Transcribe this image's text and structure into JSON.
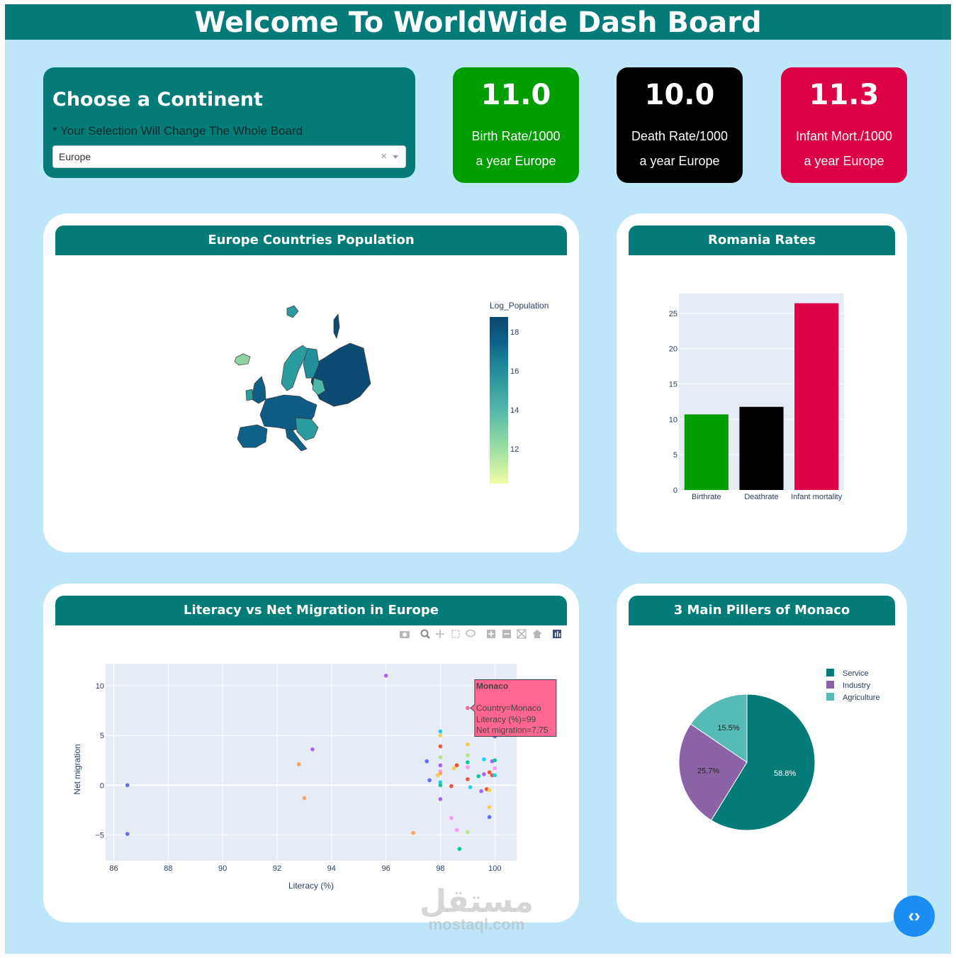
{
  "header": {
    "title": "Welcome To WorldWide Dash Board"
  },
  "selector": {
    "title": "Choose a Continent",
    "note": "* Your Selection Will Change The Whole Board",
    "selected": "Europe",
    "clear_glyph": "×"
  },
  "stats": {
    "birth": {
      "value": "11.0",
      "line1": "Birth Rate/1000",
      "line2": "a year Europe",
      "color": "#009e00"
    },
    "death": {
      "value": "10.0",
      "line1": "Death Rate/1000",
      "line2": "a year Europe",
      "color": "#000000"
    },
    "infant": {
      "value": "11.3",
      "line1": "Infant Mort./1000",
      "line2": "a year Europe",
      "color": "#dc0045"
    }
  },
  "map_card": {
    "title": "Europe Countries Population",
    "colorbar_title": "Log_Population",
    "colorbar_ticks": [
      "18",
      "16",
      "14",
      "12"
    ]
  },
  "rates_card": {
    "title": "Romania Rates"
  },
  "scatter_card": {
    "title": "Literacy vs Net Migration in Europe",
    "toolbar_icons": [
      "camera-icon",
      "zoom-icon",
      "pan-icon",
      "box-select-icon",
      "lasso-icon",
      "zoom-in-icon",
      "zoom-out-icon",
      "autoscale-icon",
      "reset-icon",
      "plotly-logo-icon"
    ],
    "tooltip": {
      "title": "Monaco",
      "line1": "Country=Monaco",
      "line2": "Literacy (%)=99",
      "line3": "Net migration=7.75"
    }
  },
  "pie_card": {
    "title": "3 Main Pillers of Monaco"
  },
  "watermark": {
    "arabic": "مستقل",
    "latin": "mostaql.com"
  },
  "code_button": {
    "glyph": "‹›"
  },
  "chart_data": [
    {
      "type": "bar",
      "title": "Romania Rates",
      "categories": [
        "Birthrate",
        "Deathrate",
        "Infant mortality"
      ],
      "values": [
        10.7,
        11.77,
        26.43
      ],
      "colors": [
        "#009e00",
        "#000000",
        "#dc0045"
      ],
      "yticks": [
        0,
        5,
        10,
        15,
        20,
        25
      ],
      "ylim": [
        0,
        27.8
      ]
    },
    {
      "type": "scatter",
      "title": "Literacy vs Net Migration in Europe",
      "xlabel": "Literacy (%)",
      "ylabel": "Net migration",
      "xlim": [
        85.7,
        100.8
      ],
      "ylim": [
        -7.6,
        12.2
      ],
      "xticks": [
        86,
        88,
        90,
        92,
        94,
        96,
        98,
        100
      ],
      "yticks": [
        10,
        5,
        0,
        -5
      ],
      "ytick_labels": [
        "10",
        "5",
        "0",
        "−5"
      ],
      "points": [
        {
          "x": 86.5,
          "y": 0.0,
          "c": "#636efa"
        },
        {
          "x": 86.5,
          "y": -4.9,
          "c": "#636efa"
        },
        {
          "x": 92.8,
          "y": 2.1,
          "c": "#ffa15a"
        },
        {
          "x": 93.0,
          "y": -1.3,
          "c": "#ffa15a"
        },
        {
          "x": 93.3,
          "y": 3.6,
          "c": "#ab63fa"
        },
        {
          "x": 96.0,
          "y": 11.0,
          "c": "#ab63fa"
        },
        {
          "x": 97.0,
          "y": -4.8,
          "c": "#ffa15a"
        },
        {
          "x": 97.5,
          "y": 2.4,
          "c": "#636efa"
        },
        {
          "x": 97.6,
          "y": 0.5,
          "c": "#636efa"
        },
        {
          "x": 98.0,
          "y": 5.4,
          "c": "#19d3f3"
        },
        {
          "x": 98.0,
          "y": 5.0,
          "c": "#fecb52"
        },
        {
          "x": 98.0,
          "y": 3.9,
          "c": "#ef553b"
        },
        {
          "x": 98.0,
          "y": 2.8,
          "c": "#b6e880"
        },
        {
          "x": 98.0,
          "y": 2.0,
          "c": "#ab63fa"
        },
        {
          "x": 98.0,
          "y": 1.4,
          "c": "#ff97ff"
        },
        {
          "x": 98.0,
          "y": 1.2,
          "c": "#ffa15a"
        },
        {
          "x": 98.0,
          "y": 0.3,
          "c": "#19d3f3"
        },
        {
          "x": 98.0,
          "y": 0.0,
          "c": "#00cc96"
        },
        {
          "x": 98.0,
          "y": -1.4,
          "c": "#ab63fa"
        },
        {
          "x": 97.9,
          "y": 1.0,
          "c": "#fecb52"
        },
        {
          "x": 98.4,
          "y": -0.1,
          "c": "#ef553b"
        },
        {
          "x": 98.4,
          "y": -3.3,
          "c": "#ff97ff"
        },
        {
          "x": 98.5,
          "y": 1.7,
          "c": "#fecb52"
        },
        {
          "x": 98.6,
          "y": 2.0,
          "c": "#ef553b"
        },
        {
          "x": 98.6,
          "y": -4.5,
          "c": "#ff97ff"
        },
        {
          "x": 98.7,
          "y": -6.4,
          "c": "#00cc96"
        },
        {
          "x": 99.0,
          "y": 7.75,
          "c": "#ff6692"
        },
        {
          "x": 99.0,
          "y": 4.1,
          "c": "#fecb52"
        },
        {
          "x": 99.0,
          "y": 3.0,
          "c": "#b6e880"
        },
        {
          "x": 99.0,
          "y": 2.3,
          "c": "#00cc96"
        },
        {
          "x": 99.0,
          "y": 1.8,
          "c": "#ff97ff"
        },
        {
          "x": 99.0,
          "y": 0.6,
          "c": "#ef553b"
        },
        {
          "x": 99.0,
          "y": -4.7,
          "c": "#b6e880"
        },
        {
          "x": 99.1,
          "y": -0.2,
          "c": "#19d3f3"
        },
        {
          "x": 99.4,
          "y": 0.9,
          "c": "#00cc96"
        },
        {
          "x": 99.5,
          "y": -0.6,
          "c": "#ab63fa"
        },
        {
          "x": 99.6,
          "y": 2.6,
          "c": "#19d3f3"
        },
        {
          "x": 99.6,
          "y": 1.1,
          "c": "#ab63fa"
        },
        {
          "x": 99.7,
          "y": -0.4,
          "c": "#ef553b"
        },
        {
          "x": 99.8,
          "y": 1.3,
          "c": "#ef553b"
        },
        {
          "x": 99.8,
          "y": -0.5,
          "c": "#fecb52"
        },
        {
          "x": 99.8,
          "y": -2.2,
          "c": "#fecb52"
        },
        {
          "x": 99.8,
          "y": -3.2,
          "c": "#636efa"
        },
        {
          "x": 99.9,
          "y": 2.4,
          "c": "#ab63fa"
        },
        {
          "x": 99.9,
          "y": 1.0,
          "c": "#ef553b"
        },
        {
          "x": 100.0,
          "y": 4.9,
          "c": "#636efa"
        },
        {
          "x": 100.0,
          "y": 2.5,
          "c": "#00cc96"
        },
        {
          "x": 100.0,
          "y": 1.7,
          "c": "#ff97ff"
        },
        {
          "x": 100.0,
          "y": 1.0,
          "c": "#19d3f3"
        }
      ]
    },
    {
      "type": "pie",
      "title": "3 Main Pillers of Monaco",
      "labels": [
        "Service",
        "Industry",
        "Agriculture"
      ],
      "values": [
        58.8,
        25.7,
        15.5
      ],
      "value_labels": [
        "58.8%",
        "25.7%",
        "15.5%"
      ],
      "colors": [
        "#037c79",
        "#8b64a8",
        "#56bbb4"
      ]
    },
    {
      "type": "heatmap",
      "title": "Europe Countries Population",
      "legend_title": "Log_Population",
      "colorbar_range": [
        10.5,
        18.9
      ],
      "colorbar_ticks": [
        18,
        16,
        14,
        12
      ],
      "colorscale": [
        "#f2fca6",
        "#a0e0a3",
        "#4fb7a9",
        "#1f8a9a",
        "#0e6288",
        "#0b4670"
      ]
    }
  ]
}
